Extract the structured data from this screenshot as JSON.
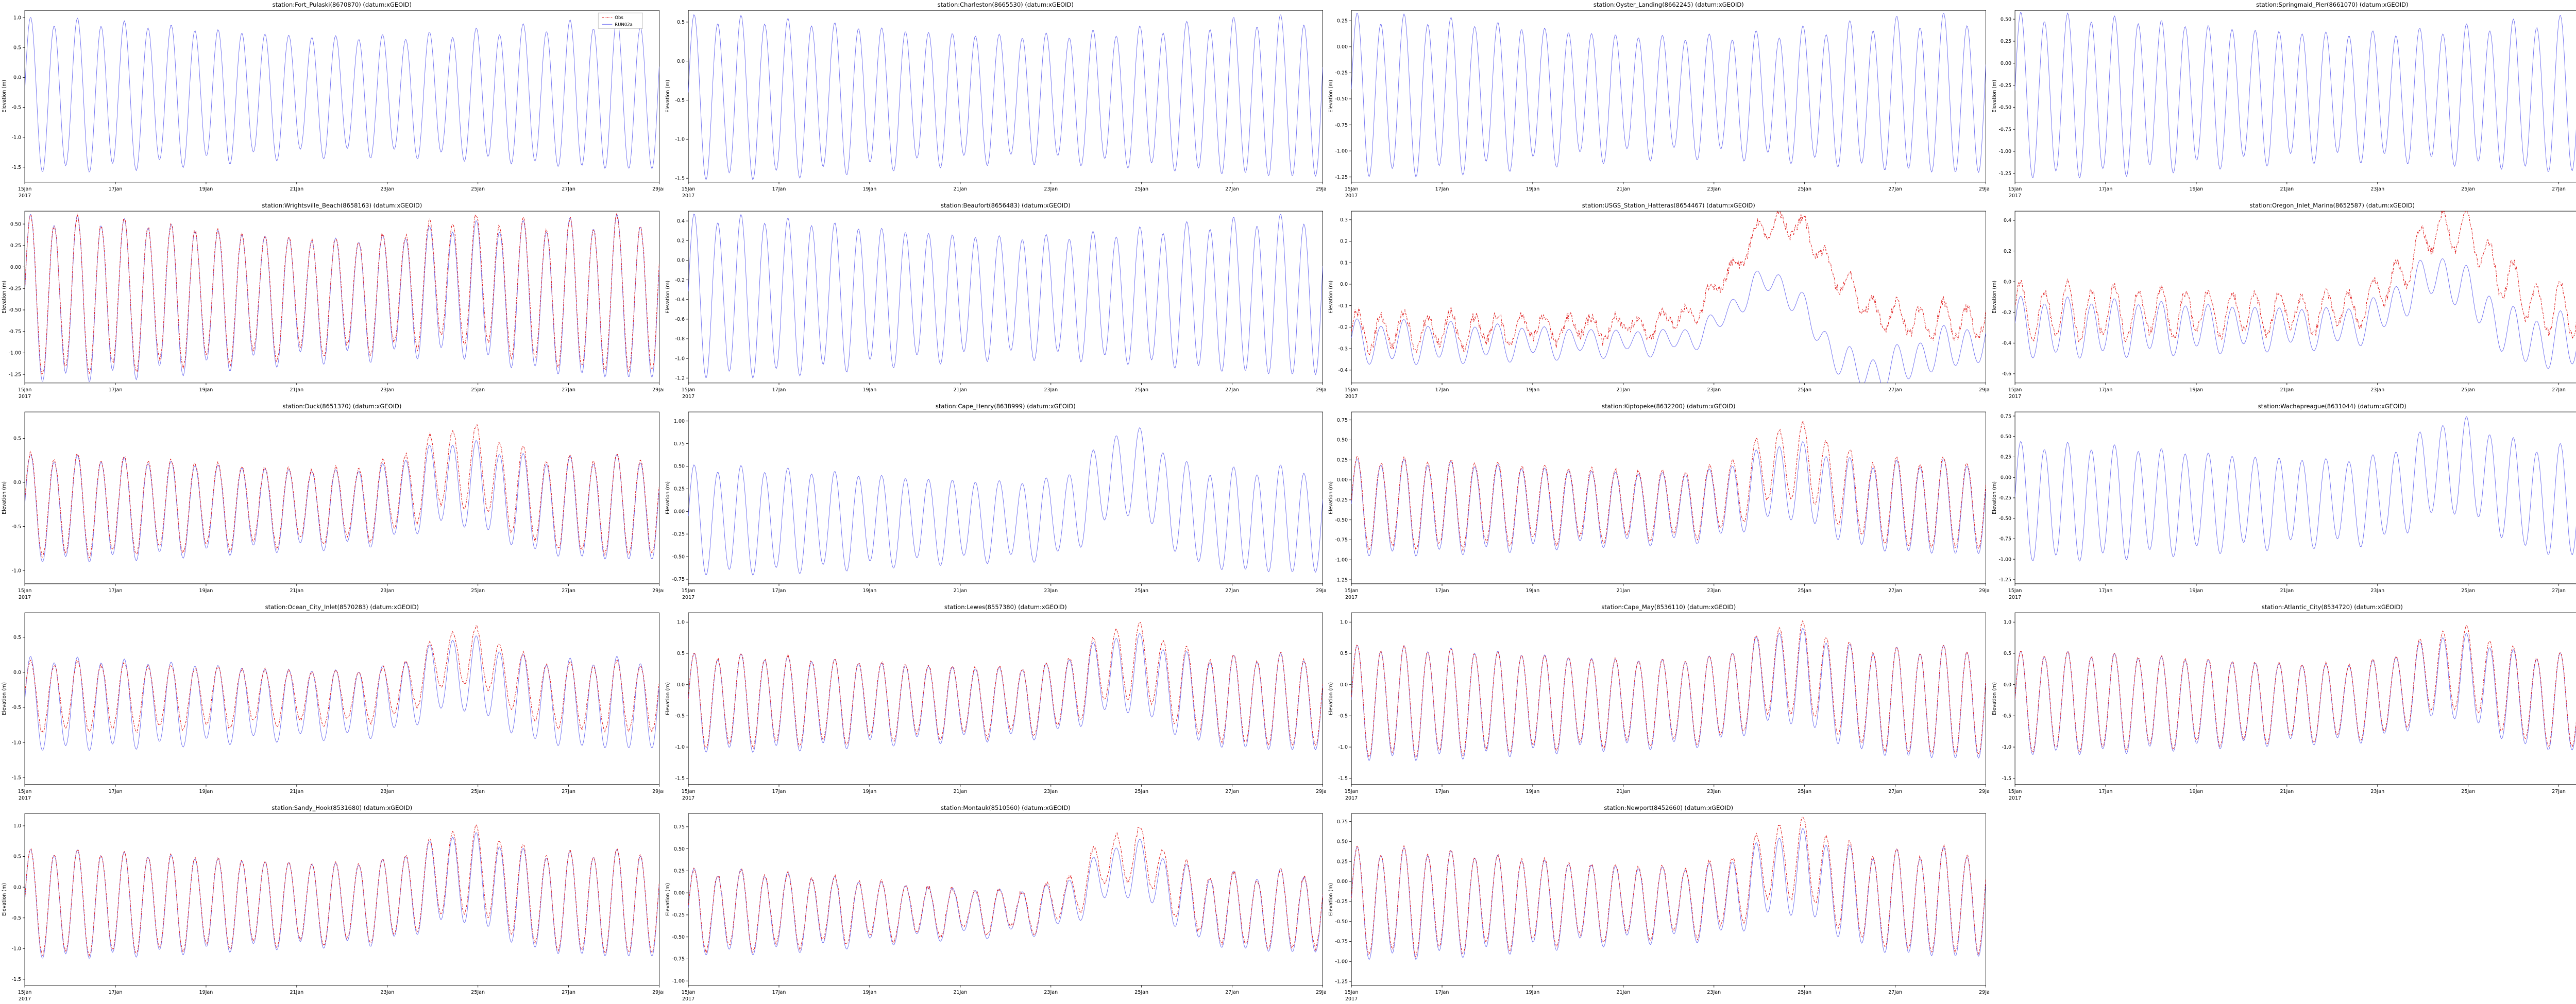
{
  "figure": {
    "background": "#ffffff",
    "model_color": "#6b6bf0",
    "obs_color": "#e02020",
    "axis_color": "#000000",
    "datum": "xGEOID"
  },
  "legend": {
    "obs_label": "Obs",
    "model_label": "RUN02a"
  },
  "axes_common": {
    "ylabel": "Elevation (m)",
    "xtick_labels": [
      "15Jan",
      "17Jan",
      "19Jan",
      "21Jan",
      "23Jan",
      "25Jan",
      "27Jan",
      "29Jan"
    ],
    "xtick_days": [
      0,
      2,
      4,
      6,
      8,
      10,
      12,
      14
    ],
    "x_year_label": "2017",
    "x_range_days": [
      0,
      14
    ]
  },
  "chart_data": [
    {
      "type": "line",
      "title": "station:Fort_Pulaski(8670870) (datum:xGEOID)",
      "ylabel": "Elevation (m)",
      "ylim": [
        -1.75,
        1.12
      ],
      "yticks": [
        1.0,
        0.5,
        0.0,
        -0.5,
        -1.0,
        -1.5
      ],
      "ytick_labels": [
        "1.0",
        "0.5",
        "0.0",
        "-0.5",
        "-1.0",
        "-1.5"
      ],
      "has_legend": true,
      "series": [
        {
          "name": "RUN02a",
          "kind": "model",
          "tide_amplitude_m": 1.1,
          "mean_m": -0.3,
          "spring_neap": 0.12,
          "diurnal": 0.08,
          "surge_m": 0.0,
          "surge_day": 9.5,
          "surge_width_days": 0.9
        }
      ]
    },
    {
      "type": "line",
      "title": "station:Charleston(8665530) (datum:xGEOID)",
      "ylabel": "Elevation (m)",
      "ylim": [
        -1.55,
        0.65
      ],
      "yticks": [
        0.5,
        0.0,
        -0.5,
        -1.0,
        -1.5
      ],
      "ytick_labels": [
        "0.5",
        "0.0",
        "-0.5",
        "-1.0",
        "-1.5"
      ],
      "has_legend": false,
      "series": [
        {
          "name": "RUN02a",
          "kind": "model",
          "tide_amplitude_m": 0.9,
          "mean_m": -0.47,
          "spring_neap": 0.12,
          "diurnal": 0.08,
          "surge_m": 0.0,
          "surge_day": 9.5,
          "surge_width_days": 0.9
        }
      ]
    },
    {
      "type": "line",
      "title": "station:Oyster_Landing(8662245) (datum:xGEOID)",
      "ylabel": "Elevation (m)",
      "ylim": [
        -1.3,
        0.35
      ],
      "yticks": [
        0.25,
        0.0,
        -0.25,
        -0.5,
        -0.75,
        -1.0,
        -1.25
      ],
      "ytick_labels": [
        "0.25",
        "0.00",
        "-0.25",
        "-0.50",
        "-0.75",
        "-1.00",
        "-1.25"
      ],
      "has_legend": false,
      "series": [
        {
          "name": "RUN02a",
          "kind": "model",
          "tide_amplitude_m": 0.65,
          "mean_m": -0.47,
          "spring_neap": 0.14,
          "diurnal": 0.1,
          "surge_m": 0.0,
          "surge_day": 9.5,
          "surge_width_days": 0.9
        }
      ]
    },
    {
      "type": "line",
      "title": "station:Springmaid_Pier(8661070) (datum:xGEOID)",
      "ylabel": "Elevation (m)",
      "ylim": [
        -1.35,
        0.6
      ],
      "yticks": [
        0.5,
        0.25,
        0.0,
        -0.25,
        -0.5,
        -0.75,
        -1.0,
        -1.25
      ],
      "ytick_labels": [
        "0.50",
        "0.25",
        "0.00",
        "-0.25",
        "-0.50",
        "-0.75",
        "-1.00",
        "-1.25"
      ],
      "has_legend": false,
      "series": [
        {
          "name": "RUN02a",
          "kind": "model",
          "tide_amplitude_m": 0.8,
          "mean_m": -0.37,
          "spring_neap": 0.12,
          "diurnal": 0.08,
          "surge_m": 0.0,
          "surge_day": 9.5,
          "surge_width_days": 0.9
        }
      ]
    },
    {
      "type": "line",
      "title": "station:Wrightsville_Beach(8658163) (datum:xGEOID)",
      "ylabel": "Elevation (m)",
      "ylim": [
        -1.35,
        0.65
      ],
      "yticks": [
        0.5,
        0.25,
        0.0,
        -0.25,
        -0.5,
        -0.75,
        -1.0,
        -1.25
      ],
      "ytick_labels": [
        "0.50",
        "0.25",
        "0.00",
        "-0.25",
        "-0.50",
        "-0.75",
        "-1.00",
        "-1.25"
      ],
      "has_legend": false,
      "series": [
        {
          "name": "RUN02a",
          "kind": "model",
          "tide_amplitude_m": 0.8,
          "mean_m": -0.37,
          "spring_neap": 0.15,
          "diurnal": 0.1,
          "surge_m": 0.1,
          "surge_day": 9.5,
          "surge_width_days": 0.9
        },
        {
          "name": "Obs",
          "kind": "obs",
          "tide_amplitude_m": 0.76,
          "mean_m": -0.33,
          "spring_neap": 0.15,
          "diurnal": 0.1,
          "surge_m": 0.18,
          "surge_day": 9.6,
          "surge_width_days": 0.9,
          "noise_m": 0.03
        }
      ]
    },
    {
      "type": "line",
      "title": "station:Beaufort(8656483) (datum:xGEOID)",
      "ylabel": "Elevation (m)",
      "ylim": [
        -1.25,
        0.5
      ],
      "yticks": [
        0.4,
        0.2,
        0.0,
        -0.2,
        -0.4,
        -0.6,
        -0.8,
        -1.0,
        -1.2
      ],
      "ytick_labels": [
        "0.4",
        "0.2",
        "0.0",
        "-0.2",
        "-0.4",
        "-0.6",
        "-0.8",
        "-1.0",
        "-1.2"
      ],
      "has_legend": false,
      "series": [
        {
          "name": "RUN02a",
          "kind": "model",
          "tide_amplitude_m": 0.7,
          "mean_m": -0.37,
          "spring_neap": 0.14,
          "diurnal": 0.08,
          "surge_m": 0.0,
          "surge_day": 9.5,
          "surge_width_days": 0.9
        }
      ]
    },
    {
      "type": "line",
      "title": "station:USGS_Station_Hatteras(8654467) (datum:xGEOID)",
      "ylabel": "Elevation (m)",
      "ylim": [
        -0.46,
        0.34
      ],
      "yticks": [
        0.3,
        0.2,
        0.1,
        0.0,
        -0.1,
        -0.2,
        -0.3,
        -0.4
      ],
      "ytick_labels": [
        "0.3",
        "0.2",
        "0.1",
        "0.0",
        "-0.1",
        "-0.2",
        "-0.3",
        "-0.4"
      ],
      "has_legend": false,
      "series": [
        {
          "name": "RUN02a",
          "kind": "model",
          "tide_amplitude_m": 0.07,
          "mean_m": -0.27,
          "spring_neap": 0.3,
          "diurnal": 0.3,
          "surge_m": 0.3,
          "surge_day": 9.3,
          "surge_width_days": 0.8,
          "dip_m": 0.15,
          "dip_day": 11.3
        },
        {
          "name": "Obs",
          "kind": "obs",
          "tide_amplitude_m": 0.06,
          "mean_m": -0.22,
          "spring_neap": 0.3,
          "diurnal": 0.3,
          "surge_m": 0.48,
          "surge_day": 9.5,
          "surge_width_days": 1.0,
          "noise_m": 0.025,
          "trend_m": 0.05
        }
      ]
    },
    {
      "type": "line",
      "title": "station:Oregon_Inlet_Marina(8652587) (datum:xGEOID)",
      "ylabel": "Elevation (m)",
      "ylim": [
        -0.66,
        0.46
      ],
      "yticks": [
        0.4,
        0.2,
        0.0,
        -0.2,
        -0.4,
        -0.6
      ],
      "ytick_labels": [
        "0.4",
        "0.2",
        "0.0",
        "-0.2",
        "-0.4",
        "-0.6"
      ],
      "has_legend": false,
      "series": [
        {
          "name": "RUN02a",
          "kind": "model",
          "tide_amplitude_m": 0.15,
          "mean_m": -0.3,
          "spring_neap": 0.2,
          "diurnal": 0.2,
          "surge_m": 0.35,
          "surge_day": 9.4,
          "surge_width_days": 0.8,
          "dip_m": 0.1,
          "dip_day": 11.5
        },
        {
          "name": "Obs",
          "kind": "obs",
          "tide_amplitude_m": 0.14,
          "mean_m": -0.2,
          "spring_neap": 0.2,
          "diurnal": 0.2,
          "surge_m": 0.55,
          "surge_day": 9.6,
          "surge_width_days": 0.9,
          "noise_m": 0.03
        }
      ]
    },
    {
      "type": "line",
      "title": "station:Duck(8651370) (datum:xGEOID)",
      "ylabel": "Elevation (m)",
      "ylim": [
        -1.15,
        0.8
      ],
      "yticks": [
        0.5,
        0.0,
        -0.5,
        -1.0
      ],
      "ytick_labels": [
        "0.5",
        "0.0",
        "-0.5",
        "-1.0"
      ],
      "has_legend": false,
      "series": [
        {
          "name": "RUN02a",
          "kind": "model",
          "tide_amplitude_m": 0.5,
          "mean_m": -0.3,
          "spring_neap": 0.15,
          "diurnal": 0.1,
          "surge_m": 0.3,
          "surge_day": 9.5,
          "surge_width_days": 0.9
        },
        {
          "name": "Obs",
          "kind": "obs",
          "tide_amplitude_m": 0.48,
          "mean_m": -0.26,
          "spring_neap": 0.15,
          "diurnal": 0.1,
          "surge_m": 0.45,
          "surge_day": 9.6,
          "surge_width_days": 0.9,
          "noise_m": 0.025
        }
      ]
    },
    {
      "type": "line",
      "title": "station:Cape_Henry(8638999) (datum:xGEOID)",
      "ylabel": "Elevation (m)",
      "ylim": [
        -0.8,
        1.1
      ],
      "yticks": [
        1.0,
        0.75,
        0.5,
        0.25,
        0.0,
        -0.25,
        -0.5,
        -0.75
      ],
      "ytick_labels": [
        "1.00",
        "0.75",
        "0.50",
        "0.25",
        "0.00",
        "-0.25",
        "-0.50",
        "-0.75"
      ],
      "has_legend": false,
      "series": [
        {
          "name": "RUN02a",
          "kind": "model",
          "tide_amplitude_m": 0.5,
          "mean_m": -0.1,
          "spring_neap": 0.15,
          "diurnal": 0.1,
          "surge_m": 0.55,
          "surge_day": 9.7,
          "surge_width_days": 0.7
        }
      ]
    },
    {
      "type": "line",
      "title": "station:Kiptopeke(8632200) (datum:xGEOID)",
      "ylabel": "Elevation (m)",
      "ylim": [
        -1.3,
        0.85
      ],
      "yticks": [
        0.75,
        0.5,
        0.25,
        0.0,
        -0.25,
        -0.5,
        -0.75,
        -1.0,
        -1.25
      ],
      "ytick_labels": [
        "0.75",
        "0.50",
        "0.25",
        "0.00",
        "-0.25",
        "-0.50",
        "-0.75",
        "-1.00",
        "-1.25"
      ],
      "has_legend": false,
      "series": [
        {
          "name": "RUN02a",
          "kind": "model",
          "tide_amplitude_m": 0.5,
          "mean_m": -0.35,
          "spring_neap": 0.15,
          "diurnal": 0.1,
          "surge_m": 0.35,
          "surge_day": 9.6,
          "surge_width_days": 0.8
        },
        {
          "name": "Obs",
          "kind": "obs",
          "tide_amplitude_m": 0.48,
          "mean_m": -0.3,
          "spring_neap": 0.15,
          "diurnal": 0.1,
          "surge_m": 0.55,
          "surge_day": 9.7,
          "surge_width_days": 0.8,
          "noise_m": 0.025
        }
      ]
    },
    {
      "type": "line",
      "title": "station:Wachapreague(8631044) (datum:xGEOID)",
      "ylabel": "Elevation (m)",
      "ylim": [
        -1.3,
        0.8
      ],
      "yticks": [
        0.75,
        0.5,
        0.25,
        0.0,
        -0.25,
        -0.5,
        -0.75,
        -1.0,
        -1.25
      ],
      "ytick_labels": [
        "0.75",
        "0.50",
        "0.25",
        "0.00",
        "-0.25",
        "-0.50",
        "-0.75",
        "-1.00",
        "-1.25"
      ],
      "has_legend": false,
      "series": [
        {
          "name": "RUN02a",
          "kind": "model",
          "tide_amplitude_m": 0.6,
          "mean_m": -0.3,
          "spring_neap": 0.15,
          "diurnal": 0.1,
          "surge_m": 0.45,
          "surge_day": 9.7,
          "surge_width_days": 0.8
        }
      ]
    },
    {
      "type": "line",
      "title": "station:Ocean_City_Inlet(8570283) (datum:xGEOID)",
      "ylabel": "Elevation (m)",
      "ylim": [
        -1.6,
        0.85
      ],
      "yticks": [
        0.5,
        0.0,
        -0.5,
        -1.0,
        -1.5
      ],
      "ytick_labels": [
        "0.5",
        "0.0",
        "-0.5",
        "-1.0",
        "-1.5"
      ],
      "has_legend": false,
      "series": [
        {
          "name": "RUN02a",
          "kind": "model",
          "tide_amplitude_m": 0.55,
          "mean_m": -0.45,
          "spring_neap": 0.15,
          "diurnal": 0.1,
          "surge_m": 0.45,
          "surge_day": 9.6,
          "surge_width_days": 0.8
        },
        {
          "name": "Obs",
          "kind": "obs",
          "tide_amplitude_m": 0.42,
          "mean_m": -0.35,
          "spring_neap": 0.15,
          "diurnal": 0.1,
          "surge_m": 0.6,
          "surge_day": 9.7,
          "surge_width_days": 0.8,
          "noise_m": 0.025
        }
      ]
    },
    {
      "type": "line",
      "title": "station:Lewes(8557380) (datum:xGEOID)",
      "ylabel": "Elevation (m)",
      "ylim": [
        -1.6,
        1.15
      ],
      "yticks": [
        1.0,
        0.5,
        0.0,
        -0.5,
        -1.0,
        -1.5
      ],
      "ytick_labels": [
        "1.0",
        "0.5",
        "0.0",
        "-0.5",
        "-1.0",
        "-1.5"
      ],
      "has_legend": false,
      "series": [
        {
          "name": "RUN02a",
          "kind": "model",
          "tide_amplitude_m": 0.65,
          "mean_m": -0.3,
          "spring_neap": 0.15,
          "diurnal": 0.1,
          "surge_m": 0.5,
          "surge_day": 9.6,
          "surge_width_days": 0.8
        },
        {
          "name": "Obs",
          "kind": "obs",
          "tide_amplitude_m": 0.62,
          "mean_m": -0.26,
          "spring_neap": 0.15,
          "diurnal": 0.1,
          "surge_m": 0.65,
          "surge_day": 9.7,
          "surge_width_days": 0.8,
          "noise_m": 0.025
        }
      ]
    },
    {
      "type": "line",
      "title": "station:Cape_May(8536110) (datum:xGEOID)",
      "ylabel": "Elevation (m)",
      "ylim": [
        -1.6,
        1.15
      ],
      "yticks": [
        1.0,
        0.5,
        0.0,
        -0.5,
        -1.0,
        -1.5
      ],
      "ytick_labels": [
        "1.0",
        "0.5",
        "0.0",
        "-0.5",
        "-1.0",
        "-1.5"
      ],
      "has_legend": false,
      "series": [
        {
          "name": "RUN02a",
          "kind": "model",
          "tide_amplitude_m": 0.78,
          "mean_m": -0.3,
          "spring_neap": 0.13,
          "diurnal": 0.08,
          "surge_m": 0.45,
          "surge_day": 9.6,
          "surge_width_days": 0.8
        },
        {
          "name": "Obs",
          "kind": "obs",
          "tide_amplitude_m": 0.75,
          "mean_m": -0.27,
          "spring_neap": 0.13,
          "diurnal": 0.08,
          "surge_m": 0.55,
          "surge_day": 9.7,
          "surge_width_days": 0.8,
          "noise_m": 0.02
        }
      ]
    },
    {
      "type": "line",
      "title": "station:Atlantic_City(8534720) (datum:xGEOID)",
      "ylabel": "Elevation (m)",
      "ylim": [
        -1.6,
        1.15
      ],
      "yticks": [
        1.0,
        0.5,
        0.0,
        -0.5,
        -1.0,
        -1.5
      ],
      "ytick_labels": [
        "1.0",
        "0.5",
        "0.0",
        "-0.5",
        "-1.0",
        "-1.5"
      ],
      "has_legend": false,
      "series": [
        {
          "name": "RUN02a",
          "kind": "model",
          "tide_amplitude_m": 0.7,
          "mean_m": -0.3,
          "spring_neap": 0.13,
          "diurnal": 0.08,
          "surge_m": 0.45,
          "surge_day": 9.6,
          "surge_width_days": 0.8
        },
        {
          "name": "Obs",
          "kind": "obs",
          "tide_amplitude_m": 0.68,
          "mean_m": -0.27,
          "spring_neap": 0.13,
          "diurnal": 0.08,
          "surge_m": 0.55,
          "surge_day": 9.7,
          "surge_width_days": 0.8,
          "noise_m": 0.02
        }
      ]
    },
    {
      "type": "line",
      "title": "station:Sandy_Hook(8531680) (datum:xGEOID)",
      "ylabel": "Elevation (m)",
      "ylim": [
        -1.6,
        1.2
      ],
      "yticks": [
        1.0,
        0.5,
        0.0,
        -0.5,
        -1.0,
        -1.5
      ],
      "ytick_labels": [
        "1.0",
        "0.5",
        "0.0",
        "-0.5",
        "-1.0",
        "-1.5"
      ],
      "has_legend": false,
      "series": [
        {
          "name": "RUN02a",
          "kind": "model",
          "tide_amplitude_m": 0.75,
          "mean_m": -0.28,
          "spring_neap": 0.13,
          "diurnal": 0.08,
          "surge_m": 0.45,
          "surge_day": 9.6,
          "surge_width_days": 0.8
        },
        {
          "name": "Obs",
          "kind": "obs",
          "tide_amplitude_m": 0.73,
          "mean_m": -0.25,
          "spring_neap": 0.13,
          "diurnal": 0.08,
          "surge_m": 0.55,
          "surge_day": 9.7,
          "surge_width_days": 0.8,
          "noise_m": 0.02
        }
      ]
    },
    {
      "type": "line",
      "title": "station:Montauk(8510560) (datum:xGEOID)",
      "ylabel": "Elevation (m)",
      "ylim": [
        -1.05,
        0.9
      ],
      "yticks": [
        0.75,
        0.5,
        0.25,
        0.0,
        -0.25,
        -0.5,
        -0.75,
        -1.0
      ],
      "ytick_labels": [
        "0.75",
        "0.50",
        "0.25",
        "0.00",
        "-0.25",
        "-0.50",
        "-0.75",
        "-1.00"
      ],
      "has_legend": false,
      "series": [
        {
          "name": "RUN02a",
          "kind": "model",
          "tide_amplitude_m": 0.35,
          "mean_m": -0.22,
          "spring_neap": 0.3,
          "diurnal": 0.15,
          "surge_m": 0.5,
          "surge_day": 9.7,
          "surge_width_days": 0.8
        },
        {
          "name": "Obs",
          "kind": "obs",
          "tide_amplitude_m": 0.33,
          "mean_m": -0.2,
          "spring_neap": 0.3,
          "diurnal": 0.15,
          "surge_m": 0.65,
          "surge_day": 9.7,
          "surge_width_days": 0.8,
          "noise_m": 0.03
        }
      ]
    },
    {
      "type": "line",
      "title": "station:Newport(8452660) (datum:xGEOID)",
      "ylabel": "Elevation (m)",
      "ylim": [
        -1.3,
        0.85
      ],
      "yticks": [
        0.75,
        0.5,
        0.25,
        0.0,
        -0.25,
        -0.5,
        -0.75,
        -1.0,
        -1.25
      ],
      "ytick_labels": [
        "0.75",
        "0.50",
        "0.25",
        "0.00",
        "-0.25",
        "-0.50",
        "-0.75",
        "-1.00",
        "-1.25"
      ],
      "has_legend": false,
      "series": [
        {
          "name": "RUN02a",
          "kind": "model",
          "tide_amplitude_m": 0.55,
          "mean_m": -0.28,
          "spring_neap": 0.2,
          "diurnal": 0.12,
          "surge_m": 0.4,
          "surge_day": 9.7,
          "surge_width_days": 0.8
        },
        {
          "name": "Obs",
          "kind": "obs",
          "tide_amplitude_m": 0.53,
          "mean_m": -0.25,
          "spring_neap": 0.2,
          "diurnal": 0.12,
          "surge_m": 0.55,
          "surge_day": 9.7,
          "surge_width_days": 0.8,
          "noise_m": 0.025
        }
      ]
    }
  ]
}
